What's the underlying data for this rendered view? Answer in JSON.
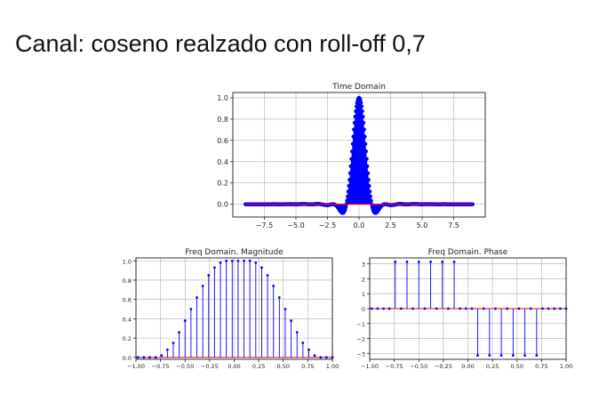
{
  "slide": {
    "title": "Canal: coseno realzado con roll-off 0,7"
  },
  "colors": {
    "stem": "#0000ff",
    "marker": "#0000ff",
    "baseline": "#ff0000",
    "grid": "#b0b0b0"
  },
  "chart_data": [
    {
      "type": "stem",
      "title": "Time Domain",
      "xlabel": "",
      "ylabel": "",
      "xlim": [
        -10,
        10
      ],
      "ylim": [
        -0.12,
        1.05
      ],
      "xticks": [
        -7.5,
        -5.0,
        -2.5,
        0.0,
        2.5,
        5.0,
        7.5
      ],
      "xtick_labels": [
        "−7.5",
        "−5.0",
        "−2.5",
        "0.0",
        "2.5",
        "5.0",
        "7.5"
      ],
      "yticks": [
        0.0,
        0.2,
        0.4,
        0.6,
        0.8,
        1.0
      ],
      "ytick_labels": [
        "0.0",
        "0.2",
        "0.4",
        "0.6",
        "0.8",
        "1.0"
      ],
      "grid": true,
      "signal": "raised-cosine pulse, roll-off 0.7, dense samples from -9 to 9",
      "rolloff": 0.7,
      "x_range": [
        -9,
        9
      ]
    },
    {
      "type": "stem",
      "title": "Freq Domain. Magnitude",
      "xlabel": "",
      "ylabel": "",
      "xlim": [
        -1.0,
        1.0
      ],
      "ylim": [
        -0.02,
        1.03
      ],
      "xticks": [
        -1.0,
        -0.75,
        -0.5,
        -0.25,
        0.0,
        0.25,
        0.5,
        0.75,
        1.0
      ],
      "xtick_labels": [
        "−1.00",
        "−0.75",
        "−0.50",
        "−0.25",
        "0.00",
        "0.25",
        "0.50",
        "0.75",
        "1.00"
      ],
      "yticks": [
        0.0,
        0.2,
        0.4,
        0.6,
        0.8,
        1.0
      ],
      "ytick_labels": [
        "0.0",
        "0.2",
        "0.4",
        "0.6",
        "0.8",
        "1.0"
      ],
      "grid": true,
      "x": [
        -0.98,
        -0.92,
        -0.86,
        -0.8,
        -0.74,
        -0.68,
        -0.62,
        -0.56,
        -0.5,
        -0.44,
        -0.38,
        -0.32,
        -0.26,
        -0.2,
        -0.14,
        -0.08,
        -0.02,
        0.04,
        0.1,
        0.16,
        0.22,
        0.28,
        0.34,
        0.4,
        0.46,
        0.52,
        0.58,
        0.64,
        0.7,
        0.76,
        0.82,
        0.88,
        0.94,
        1.0
      ],
      "y": [
        0.0,
        0.0,
        0.0,
        0.0,
        0.02,
        0.08,
        0.15,
        0.26,
        0.38,
        0.5,
        0.62,
        0.74,
        0.85,
        0.93,
        0.98,
        1.0,
        1.0,
        1.0,
        1.0,
        1.0,
        0.98,
        0.93,
        0.85,
        0.74,
        0.62,
        0.5,
        0.38,
        0.26,
        0.15,
        0.08,
        0.02,
        0.0,
        0.0,
        0.0
      ]
    },
    {
      "type": "stem",
      "title": "Freq Domain. Phase",
      "xlabel": "",
      "ylabel": "",
      "xlim": [
        -1.0,
        1.0
      ],
      "ylim": [
        -3.4,
        3.4
      ],
      "xticks": [
        -1.0,
        -0.75,
        -0.5,
        -0.25,
        0.0,
        0.25,
        0.5,
        0.75,
        1.0
      ],
      "xtick_labels": [
        "−1.00",
        "−0.75",
        "−0.50",
        "−0.25",
        "0.00",
        "0.25",
        "0.50",
        "0.75",
        "1.00"
      ],
      "yticks": [
        -3,
        -2,
        -1,
        0,
        1,
        2,
        3
      ],
      "ytick_labels": [
        "−3",
        "−2",
        "−1",
        "0",
        "1",
        "2",
        "3"
      ],
      "grid": true,
      "x": [
        -0.98,
        -0.92,
        -0.86,
        -0.8,
        -0.74,
        -0.68,
        -0.62,
        -0.56,
        -0.5,
        -0.44,
        -0.38,
        -0.32,
        -0.26,
        -0.2,
        -0.14,
        -0.08,
        -0.02,
        0.04,
        0.1,
        0.16,
        0.22,
        0.28,
        0.34,
        0.4,
        0.46,
        0.52,
        0.58,
        0.64,
        0.7,
        0.76,
        0.82,
        0.88,
        0.94,
        1.0
      ],
      "y": [
        0,
        0,
        0,
        0,
        3.14,
        0,
        3.14,
        0,
        3.14,
        0,
        3.14,
        0,
        3.14,
        0,
        3.14,
        0,
        0,
        0,
        -3.14,
        0,
        -3.14,
        0,
        -3.14,
        0,
        -3.14,
        0,
        -3.14,
        0,
        -3.14,
        0,
        0,
        0,
        0,
        0
      ]
    }
  ]
}
